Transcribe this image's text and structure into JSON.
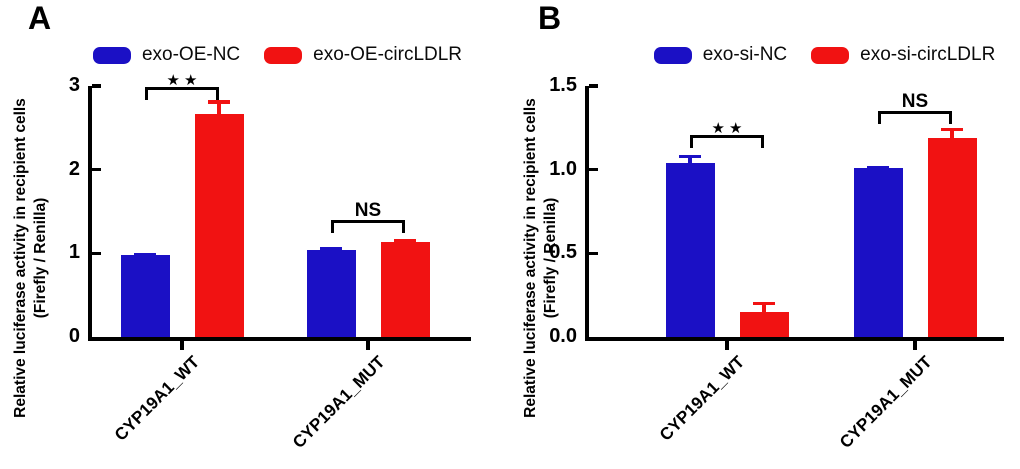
{
  "figure_colors": {
    "series_blue": "#1b10c5",
    "series_red": "#f11212",
    "axis_black": "#000000",
    "background": "#ffffff"
  },
  "chart_data": [
    {
      "type": "bar",
      "panel_label": "A",
      "ylabel": "Relative luciferase activity in recipient cells",
      "ylabel2": "(Firefly / Renilla)",
      "ylim": [
        0,
        3
      ],
      "yticks": [
        {
          "value": 0,
          "label": "0"
        },
        {
          "value": 1,
          "label": "1"
        },
        {
          "value": 2,
          "label": "2"
        },
        {
          "value": 3,
          "label": "3"
        }
      ],
      "categories": [
        "CYP19A1_WT",
        "CYP19A1_MUT"
      ],
      "series": [
        {
          "name": "exo-OE-NC",
          "color": "#1b10c5",
          "values": [
            0.98,
            1.04
          ],
          "errors": [
            0.03,
            0.03
          ]
        },
        {
          "name": "exo-OE-circLDLR",
          "color": "#f11212",
          "values": [
            2.66,
            1.13
          ],
          "errors": [
            0.17,
            0.04
          ]
        }
      ],
      "significance": [
        {
          "group": 0,
          "label": "★★",
          "y": 2.99
        },
        {
          "group": 1,
          "label": "NS",
          "y": 1.4
        }
      ],
      "legend_position": "top",
      "grid": false
    },
    {
      "type": "bar",
      "panel_label": "B",
      "ylabel": "Relative luciferase activity in recipient cells",
      "ylabel2": "(Firefly / Renilla)",
      "ylim": [
        0,
        1.5
      ],
      "yticks": [
        {
          "value": 0,
          "label": "0.0"
        },
        {
          "value": 0.5,
          "label": "0.5"
        },
        {
          "value": 1.0,
          "label": "1.0"
        },
        {
          "value": 1.5,
          "label": "1.5"
        }
      ],
      "categories": [
        "CYP19A1_WT",
        "CYP19A1_MUT"
      ],
      "series": [
        {
          "name": "exo-si-NC",
          "color": "#1b10c5",
          "values": [
            1.04,
            1.01
          ],
          "errors": [
            0.05,
            0.01
          ]
        },
        {
          "name": "exo-si-circLDLR",
          "color": "#f11212",
          "values": [
            0.15,
            1.19
          ],
          "errors": [
            0.06,
            0.06
          ]
        }
      ],
      "significance": [
        {
          "group": 0,
          "label": "★★",
          "y": 1.21
        },
        {
          "group": 1,
          "label": "NS",
          "y": 1.35
        }
      ],
      "legend_position": "top",
      "grid": false
    }
  ]
}
